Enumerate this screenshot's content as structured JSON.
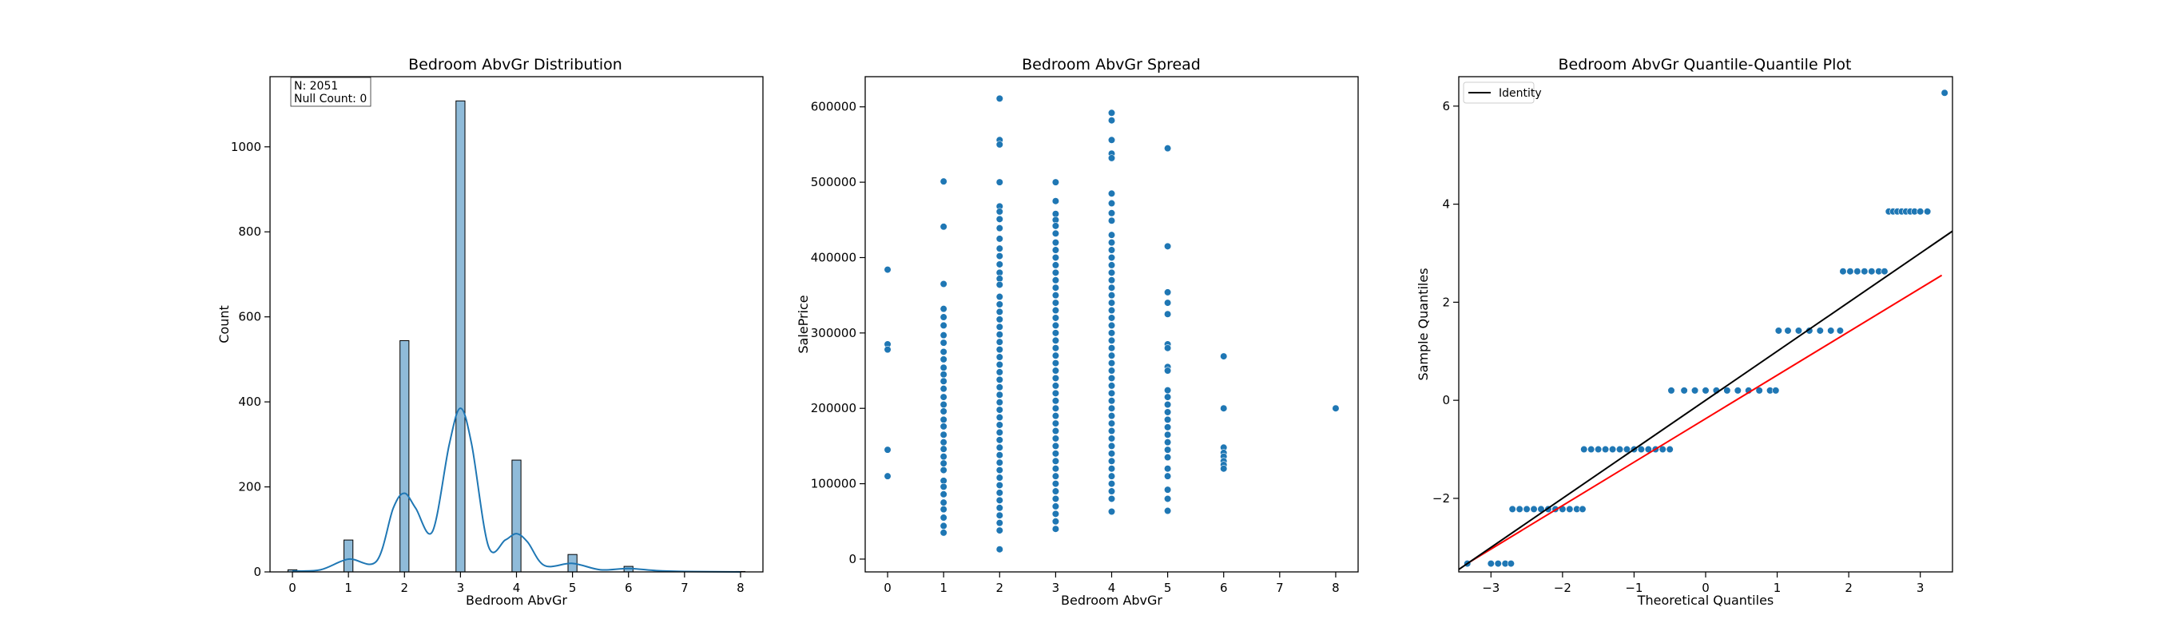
{
  "chart_data": [
    {
      "type": "bar",
      "title": "Bedroom AbvGr Distribution",
      "xlabel": "Bedroom AbvGr",
      "ylabel": "Count",
      "xlim": [
        -0.4,
        8.4
      ],
      "ylim": [
        0,
        1165
      ],
      "xticks": [
        0,
        1,
        2,
        3,
        4,
        5,
        6,
        7,
        8
      ],
      "yticks": [
        0,
        200,
        400,
        600,
        800,
        1000
      ],
      "bar_color": "#1f77b4",
      "categories": [
        "0",
        "1",
        "2",
        "3",
        "4",
        "5",
        "6",
        "8"
      ],
      "values": [
        5,
        75,
        544,
        1108,
        263,
        41,
        13,
        1
      ],
      "kde": {
        "x": [
          0,
          0.5,
          1.0,
          1.5,
          1.8,
          2.0,
          2.2,
          2.5,
          2.8,
          3.0,
          3.2,
          3.5,
          3.8,
          4.0,
          4.2,
          4.5,
          5.0,
          5.5,
          6.0,
          6.5,
          7.0,
          8.0
        ],
        "y": [
          2,
          5,
          30,
          25,
          150,
          185,
          150,
          95,
          300,
          385,
          300,
          60,
          75,
          90,
          70,
          15,
          20,
          5,
          8,
          3,
          1,
          0
        ]
      },
      "annotation": [
        "N: 2051",
        "Null Count: 0"
      ]
    },
    {
      "type": "scatter",
      "title": "Bedroom AbvGr Spread",
      "xlabel": "Bedroom AbvGr",
      "ylabel": "SalePrice",
      "xlim": [
        -0.4,
        8.4
      ],
      "ylim": [
        -17000,
        640000
      ],
      "xticks": [
        0,
        1,
        2,
        3,
        4,
        5,
        6,
        7,
        8
      ],
      "yticks": [
        0,
        100000,
        200000,
        300000,
        400000,
        500000,
        600000
      ],
      "point_color": "#1f77b4",
      "points": [
        [
          0,
          384000
        ],
        [
          0,
          285000
        ],
        [
          0,
          278000
        ],
        [
          0,
          145000
        ],
        [
          0,
          110000
        ],
        [
          1,
          501000
        ],
        [
          1,
          441000
        ],
        [
          1,
          365000
        ],
        [
          1,
          332000
        ],
        [
          1,
          321000
        ],
        [
          1,
          310000
        ],
        [
          1,
          297000
        ],
        [
          1,
          287000
        ],
        [
          1,
          275000
        ],
        [
          1,
          265000
        ],
        [
          1,
          254000
        ],
        [
          1,
          245000
        ],
        [
          1,
          236000
        ],
        [
          1,
          226000
        ],
        [
          1,
          215000
        ],
        [
          1,
          205000
        ],
        [
          1,
          196000
        ],
        [
          1,
          185000
        ],
        [
          1,
          176000
        ],
        [
          1,
          165000
        ],
        [
          1,
          155000
        ],
        [
          1,
          146000
        ],
        [
          1,
          136000
        ],
        [
          1,
          127000
        ],
        [
          1,
          118000
        ],
        [
          1,
          104000
        ],
        [
          1,
          96000
        ],
        [
          1,
          86000
        ],
        [
          1,
          75000
        ],
        [
          1,
          66000
        ],
        [
          1,
          55000
        ],
        [
          1,
          44000
        ],
        [
          1,
          35000
        ],
        [
          2,
          611000
        ],
        [
          2,
          556000
        ],
        [
          2,
          550000
        ],
        [
          2,
          500000
        ],
        [
          2,
          468000
        ],
        [
          2,
          461000
        ],
        [
          2,
          451000
        ],
        [
          2,
          439000
        ],
        [
          2,
          425000
        ],
        [
          2,
          412000
        ],
        [
          2,
          402000
        ],
        [
          2,
          391000
        ],
        [
          2,
          380000
        ],
        [
          2,
          372000
        ],
        [
          2,
          364000
        ],
        [
          2,
          348000
        ],
        [
          2,
          338000
        ],
        [
          2,
          328000
        ],
        [
          2,
          318000
        ],
        [
          2,
          308000
        ],
        [
          2,
          298000
        ],
        [
          2,
          288000
        ],
        [
          2,
          278000
        ],
        [
          2,
          268000
        ],
        [
          2,
          258000
        ],
        [
          2,
          248000
        ],
        [
          2,
          238000
        ],
        [
          2,
          228000
        ],
        [
          2,
          218000
        ],
        [
          2,
          208000
        ],
        [
          2,
          198000
        ],
        [
          2,
          188000
        ],
        [
          2,
          178000
        ],
        [
          2,
          168000
        ],
        [
          2,
          158000
        ],
        [
          2,
          148000
        ],
        [
          2,
          138000
        ],
        [
          2,
          128000
        ],
        [
          2,
          118000
        ],
        [
          2,
          108000
        ],
        [
          2,
          98000
        ],
        [
          2,
          88000
        ],
        [
          2,
          78000
        ],
        [
          2,
          68000
        ],
        [
          2,
          58000
        ],
        [
          2,
          48000
        ],
        [
          2,
          38000
        ],
        [
          2,
          13000
        ],
        [
          3,
          500000
        ],
        [
          3,
          475000
        ],
        [
          3,
          458000
        ],
        [
          3,
          450000
        ],
        [
          3,
          442000
        ],
        [
          3,
          432000
        ],
        [
          3,
          420000
        ],
        [
          3,
          410000
        ],
        [
          3,
          400000
        ],
        [
          3,
          390000
        ],
        [
          3,
          380000
        ],
        [
          3,
          370000
        ],
        [
          3,
          360000
        ],
        [
          3,
          350000
        ],
        [
          3,
          340000
        ],
        [
          3,
          330000
        ],
        [
          3,
          320000
        ],
        [
          3,
          310000
        ],
        [
          3,
          300000
        ],
        [
          3,
          290000
        ],
        [
          3,
          280000
        ],
        [
          3,
          270000
        ],
        [
          3,
          260000
        ],
        [
          3,
          250000
        ],
        [
          3,
          240000
        ],
        [
          3,
          230000
        ],
        [
          3,
          220000
        ],
        [
          3,
          210000
        ],
        [
          3,
          200000
        ],
        [
          3,
          190000
        ],
        [
          3,
          180000
        ],
        [
          3,
          170000
        ],
        [
          3,
          160000
        ],
        [
          3,
          150000
        ],
        [
          3,
          140000
        ],
        [
          3,
          130000
        ],
        [
          3,
          120000
        ],
        [
          3,
          110000
        ],
        [
          3,
          100000
        ],
        [
          3,
          90000
        ],
        [
          3,
          80000
        ],
        [
          3,
          70000
        ],
        [
          3,
          60000
        ],
        [
          3,
          50000
        ],
        [
          3,
          40000
        ],
        [
          4,
          592000
        ],
        [
          4,
          582000
        ],
        [
          4,
          556000
        ],
        [
          4,
          538000
        ],
        [
          4,
          532000
        ],
        [
          4,
          485000
        ],
        [
          4,
          472000
        ],
        [
          4,
          459000
        ],
        [
          4,
          449000
        ],
        [
          4,
          430000
        ],
        [
          4,
          420000
        ],
        [
          4,
          410000
        ],
        [
          4,
          400000
        ],
        [
          4,
          390000
        ],
        [
          4,
          380000
        ],
        [
          4,
          370000
        ],
        [
          4,
          360000
        ],
        [
          4,
          350000
        ],
        [
          4,
          340000
        ],
        [
          4,
          330000
        ],
        [
          4,
          320000
        ],
        [
          4,
          310000
        ],
        [
          4,
          300000
        ],
        [
          4,
          290000
        ],
        [
          4,
          280000
        ],
        [
          4,
          270000
        ],
        [
          4,
          260000
        ],
        [
          4,
          250000
        ],
        [
          4,
          240000
        ],
        [
          4,
          230000
        ],
        [
          4,
          220000
        ],
        [
          4,
          210000
        ],
        [
          4,
          200000
        ],
        [
          4,
          190000
        ],
        [
          4,
          180000
        ],
        [
          4,
          170000
        ],
        [
          4,
          160000
        ],
        [
          4,
          150000
        ],
        [
          4,
          140000
        ],
        [
          4,
          130000
        ],
        [
          4,
          120000
        ],
        [
          4,
          110000
        ],
        [
          4,
          100000
        ],
        [
          4,
          90000
        ],
        [
          4,
          80000
        ],
        [
          4,
          63000
        ],
        [
          5,
          545000
        ],
        [
          5,
          415000
        ],
        [
          5,
          354000
        ],
        [
          5,
          340000
        ],
        [
          5,
          325000
        ],
        [
          5,
          285000
        ],
        [
          5,
          280000
        ],
        [
          5,
          255000
        ],
        [
          5,
          250000
        ],
        [
          5,
          224000
        ],
        [
          5,
          215000
        ],
        [
          5,
          205000
        ],
        [
          5,
          195000
        ],
        [
          5,
          185000
        ],
        [
          5,
          175000
        ],
        [
          5,
          165000
        ],
        [
          5,
          155000
        ],
        [
          5,
          145000
        ],
        [
          5,
          135000
        ],
        [
          5,
          120000
        ],
        [
          5,
          110000
        ],
        [
          5,
          92000
        ],
        [
          5,
          80000
        ],
        [
          5,
          64000
        ],
        [
          6,
          269000
        ],
        [
          6,
          200000
        ],
        [
          6,
          148000
        ],
        [
          6,
          141000
        ],
        [
          6,
          136000
        ],
        [
          6,
          130000
        ],
        [
          6,
          125000
        ],
        [
          6,
          120000
        ],
        [
          8,
          200000
        ]
      ]
    },
    {
      "type": "scatter",
      "title": "Bedroom AbvGr Quantile-Quantile Plot",
      "xlabel": "Theoretical Quantiles",
      "ylabel": "Sample Quantiles",
      "xlim": [
        -3.45,
        3.45
      ],
      "ylim": [
        -3.5,
        6.6
      ],
      "xticks": [
        -3,
        -2,
        -1,
        0,
        1,
        2,
        3
      ],
      "yticks": [
        -2,
        0,
        2,
        4,
        6
      ],
      "legend": [
        "Identity"
      ],
      "legend_position": "top-left",
      "point_color": "#1f77b4",
      "identity_line": {
        "color": "#000000",
        "x": [
          -3.45,
          3.45
        ],
        "y": [
          -3.45,
          3.45
        ]
      },
      "fit_line": {
        "color": "#ff0000",
        "x": [
          -3.3,
          3.3
        ],
        "y": [
          -3.3,
          2.55
        ]
      },
      "points": [
        [
          -3.33,
          -3.33
        ],
        [
          -3.0,
          -3.33
        ],
        [
          -2.9,
          -3.33
        ],
        [
          -2.8,
          -3.33
        ],
        [
          -2.72,
          -3.33
        ],
        [
          -2.7,
          -2.22
        ],
        [
          -2.6,
          -2.22
        ],
        [
          -2.5,
          -2.22
        ],
        [
          -2.4,
          -2.22
        ],
        [
          -2.3,
          -2.22
        ],
        [
          -2.2,
          -2.22
        ],
        [
          -2.1,
          -2.22
        ],
        [
          -2.0,
          -2.22
        ],
        [
          -1.9,
          -2.22
        ],
        [
          -1.8,
          -2.22
        ],
        [
          -1.72,
          -2.22
        ],
        [
          -1.7,
          -1.0
        ],
        [
          -1.6,
          -1.0
        ],
        [
          -1.5,
          -1.0
        ],
        [
          -1.4,
          -1.0
        ],
        [
          -1.3,
          -1.0
        ],
        [
          -1.2,
          -1.0
        ],
        [
          -1.1,
          -1.0
        ],
        [
          -1.0,
          -1.0
        ],
        [
          -0.9,
          -1.0
        ],
        [
          -0.8,
          -1.0
        ],
        [
          -0.7,
          -1.0
        ],
        [
          -0.6,
          -1.0
        ],
        [
          -0.5,
          -1.0
        ],
        [
          -0.48,
          0.2
        ],
        [
          -0.3,
          0.2
        ],
        [
          -0.15,
          0.2
        ],
        [
          0.0,
          0.2
        ],
        [
          0.15,
          0.2
        ],
        [
          0.3,
          0.2
        ],
        [
          0.45,
          0.2
        ],
        [
          0.6,
          0.2
        ],
        [
          0.75,
          0.2
        ],
        [
          0.9,
          0.2
        ],
        [
          0.98,
          0.2
        ],
        [
          1.02,
          1.42
        ],
        [
          1.15,
          1.42
        ],
        [
          1.3,
          1.42
        ],
        [
          1.45,
          1.42
        ],
        [
          1.6,
          1.42
        ],
        [
          1.75,
          1.42
        ],
        [
          1.88,
          1.42
        ],
        [
          1.92,
          2.63
        ],
        [
          2.02,
          2.63
        ],
        [
          2.12,
          2.63
        ],
        [
          2.22,
          2.63
        ],
        [
          2.32,
          2.63
        ],
        [
          2.42,
          2.63
        ],
        [
          2.5,
          2.63
        ],
        [
          2.56,
          3.85
        ],
        [
          2.62,
          3.85
        ],
        [
          2.68,
          3.85
        ],
        [
          2.74,
          3.85
        ],
        [
          2.8,
          3.85
        ],
        [
          2.86,
          3.85
        ],
        [
          2.92,
          3.85
        ],
        [
          3.0,
          3.85
        ],
        [
          3.1,
          3.85
        ],
        [
          3.34,
          6.27
        ]
      ]
    }
  ]
}
